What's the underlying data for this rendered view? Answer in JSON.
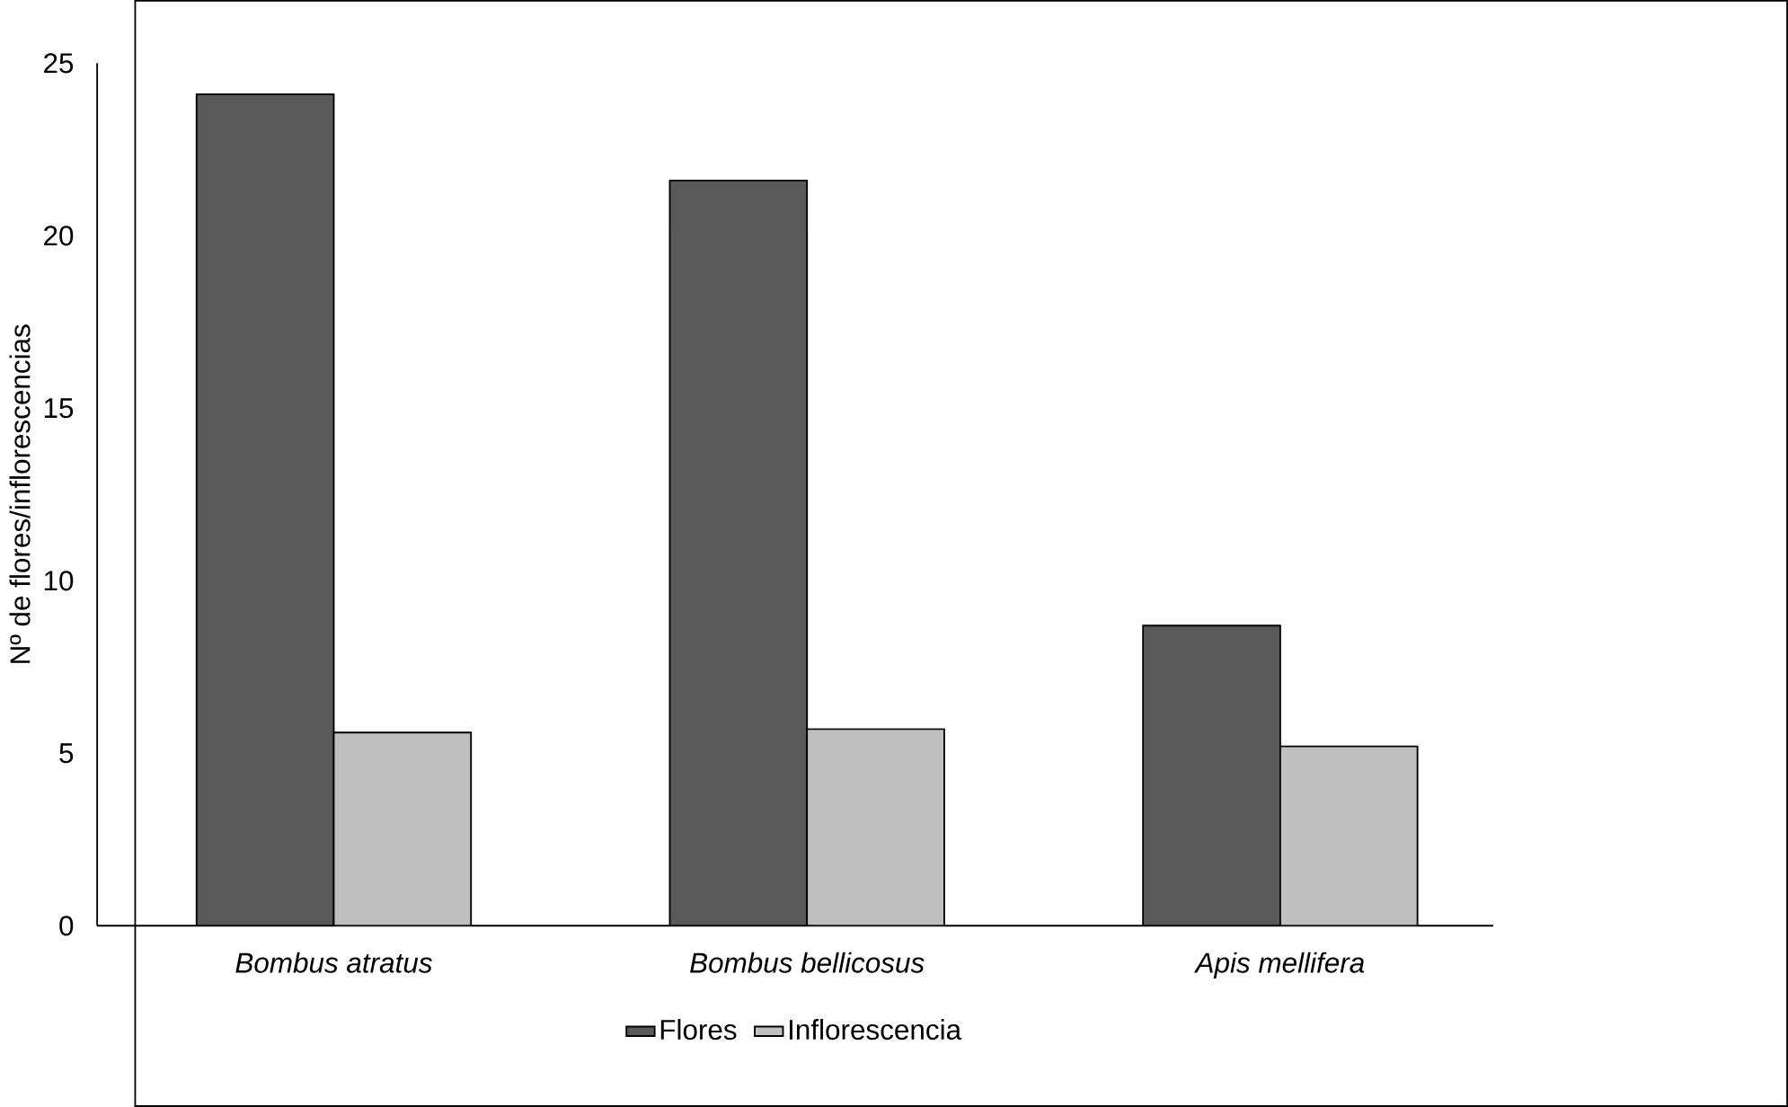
{
  "chart_data": {
    "type": "bar",
    "ylabel": "Nº de flores/inflorescencias",
    "categories": [
      "*Bombus atratus*",
      "*Bombus bellicosus*",
      "*Apis mellifera*"
    ],
    "series": [
      {
        "name": "Flores",
        "color": "#595959",
        "values": [
          24.1,
          21.6,
          8.7
        ]
      },
      {
        "name": "Inflorescencia",
        "color": "#bfbfbf",
        "values": [
          5.6,
          5.7,
          5.2
        ]
      }
    ],
    "ylim": [
      0,
      25
    ],
    "yticks": [
      0,
      5,
      10,
      15,
      20,
      25
    ],
    "legend": "bottom",
    "grid": false
  }
}
